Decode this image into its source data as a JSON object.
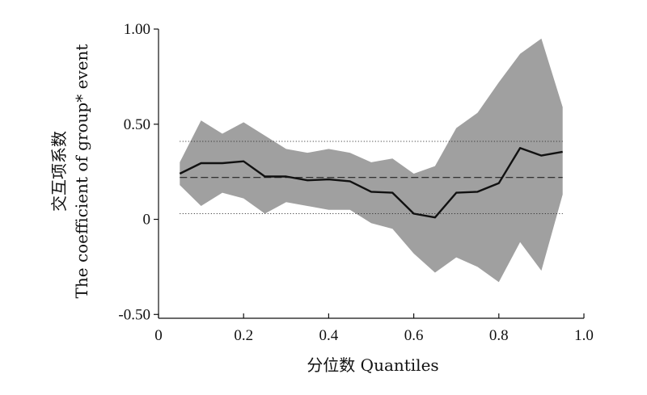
{
  "chart_data": {
    "type": "line",
    "xlabel": "分位数 Quantiles",
    "ylabel_cn": "交互项系数",
    "ylabel_en": "The coefficient of group* event",
    "xlim": [
      0,
      1.0
    ],
    "ylim": [
      -0.52,
      1.0
    ],
    "x_ticks": [
      0,
      0.2,
      0.4,
      0.6,
      0.8,
      1.0
    ],
    "x_tick_labels": [
      "0",
      "0.2",
      "0.4",
      "0.6",
      "0.8",
      "1.0"
    ],
    "y_ticks": [
      -0.5,
      0,
      0.5,
      1.0
    ],
    "y_tick_labels": [
      "-0.50",
      "0",
      "0.50",
      "1.00"
    ],
    "grid": false,
    "x": [
      0.05,
      0.1,
      0.15,
      0.2,
      0.25,
      0.3,
      0.35,
      0.4,
      0.45,
      0.5,
      0.55,
      0.6,
      0.65,
      0.7,
      0.75,
      0.8,
      0.85,
      0.9,
      0.95
    ],
    "series": [
      {
        "values": [
          0.24,
          0.295,
          0.295,
          0.305,
          0.225,
          0.225,
          0.205,
          0.21,
          0.2,
          0.145,
          0.14,
          0.03,
          0.01,
          0.14,
          0.145,
          0.19,
          0.375,
          0.335,
          0.355
        ]
      }
    ],
    "band": {
      "lower": [
        0.18,
        0.07,
        0.14,
        0.11,
        0.03,
        0.09,
        0.07,
        0.05,
        0.05,
        -0.02,
        -0.05,
        -0.18,
        -0.28,
        -0.2,
        -0.25,
        -0.33,
        -0.12,
        -0.27,
        0.13
      ],
      "upper": [
        0.3,
        0.52,
        0.45,
        0.51,
        0.44,
        0.37,
        0.35,
        0.37,
        0.35,
        0.3,
        0.32,
        0.24,
        0.28,
        0.48,
        0.56,
        0.72,
        0.87,
        0.95,
        0.59
      ],
      "color": "#a0a0a0"
    },
    "reference_lines": [
      {
        "style": "dashed",
        "y": 0.22
      },
      {
        "style": "dotted",
        "y": 0.41
      },
      {
        "style": "dotted",
        "y": 0.03
      }
    ],
    "line_color": "#111111"
  }
}
